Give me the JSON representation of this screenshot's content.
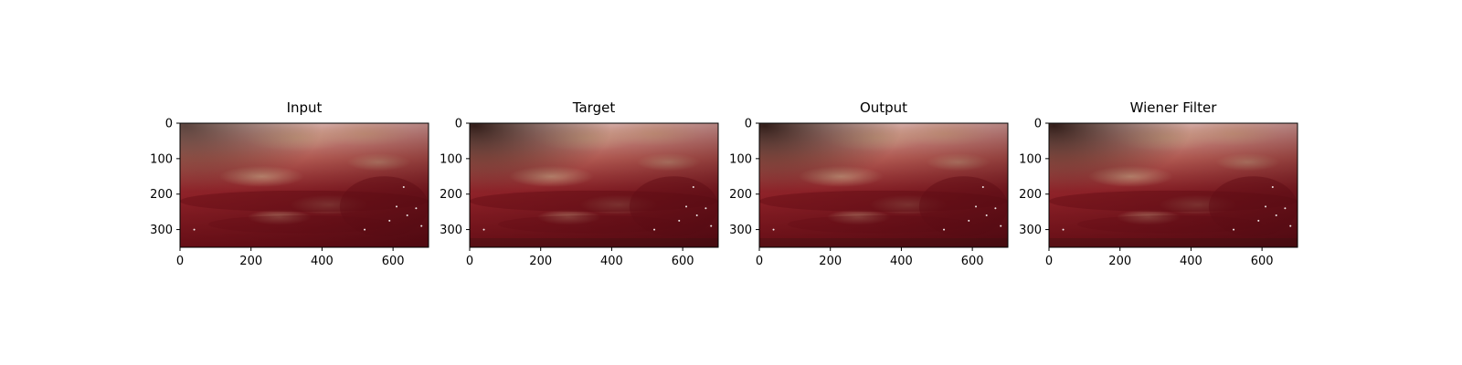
{
  "figure": {
    "panels": [
      {
        "title": "Input",
        "variant": "input"
      },
      {
        "title": "Target",
        "variant": "target"
      },
      {
        "title": "Output",
        "variant": "output"
      },
      {
        "title": "Wiener Filter",
        "variant": "wiener"
      }
    ],
    "image_size": {
      "width": 700,
      "height": 350
    },
    "xticks": [
      0,
      200,
      400,
      600
    ],
    "yticks": [
      0,
      100,
      200,
      300
    ],
    "colors": {
      "tissue_deep": "#6e1018",
      "tissue_mid": "#9e2a30",
      "tissue_light": "#d88070",
      "fat": "#e8c8a0",
      "highlight": "#f6ddd2",
      "shadow": "#2a1410"
    }
  }
}
